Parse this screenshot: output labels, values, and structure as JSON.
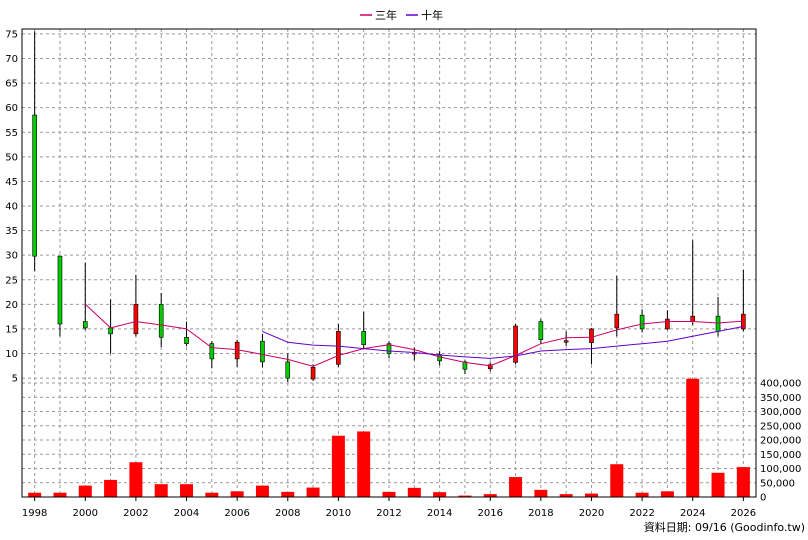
{
  "legend": [
    {
      "label": "三年",
      "color": "#cc0066"
    },
    {
      "label": "十年",
      "color": "#6600cc"
    }
  ],
  "footer": "資料日期: 09/16 (Goodinfo.tw)",
  "chart_data": [
    {
      "type": "candlestick",
      "x_ticks": [
        "1998",
        "2000",
        "2002",
        "2004",
        "2006",
        "2008",
        "2010",
        "2012",
        "2014",
        "2016",
        "2018",
        "2020",
        "2022",
        "2024",
        "2026"
      ],
      "y_ticks": [
        "75",
        "70",
        "65",
        "60",
        "55",
        "50",
        "45",
        "40",
        "35",
        "30",
        "25",
        "20",
        "15",
        "10",
        "5"
      ],
      "ylim": [
        4,
        76
      ],
      "xlim": [
        1997.5,
        2026.5
      ],
      "up_color": "#ff0000",
      "down_color": "#00cc00",
      "candles": [
        {
          "year": 1998,
          "open": 58.5,
          "close": 29.8,
          "high": 75.5,
          "low": 26.8
        },
        {
          "year": 1999,
          "open": 29.8,
          "close": 16.0,
          "high": 29.8,
          "low": 13.5
        },
        {
          "year": 2000,
          "open": 16.5,
          "close": 15.2,
          "high": 28.5,
          "low": 14.8
        },
        {
          "year": 2001,
          "open": 15.2,
          "close": 14.0,
          "high": 21.0,
          "low": 10.0
        },
        {
          "year": 2002,
          "open": 14.0,
          "close": 20.0,
          "high": 26.0,
          "low": 13.5
        },
        {
          "year": 2003,
          "open": 20.0,
          "close": 13.3,
          "high": 22.3,
          "low": 11.3
        },
        {
          "year": 2004,
          "open": 13.3,
          "close": 12.0,
          "high": 16.5,
          "low": 11.5
        },
        {
          "year": 2005,
          "open": 12.0,
          "close": 8.9,
          "high": 12.5,
          "low": 7.0
        },
        {
          "year": 2006,
          "open": 8.9,
          "close": 12.3,
          "high": 12.8,
          "low": 7.3
        },
        {
          "year": 2007,
          "open": 12.5,
          "close": 8.3,
          "high": 14.0,
          "low": 7.2
        },
        {
          "year": 2008,
          "open": 8.3,
          "close": 5.0,
          "high": 10.0,
          "low": 4.2
        },
        {
          "year": 2009,
          "open": 4.8,
          "close": 7.2,
          "high": 7.8,
          "low": 4.4
        },
        {
          "year": 2010,
          "open": 7.8,
          "close": 14.5,
          "high": 16.0,
          "low": 7.3
        },
        {
          "year": 2011,
          "open": 14.5,
          "close": 11.8,
          "high": 18.5,
          "low": 11.0
        },
        {
          "year": 2012,
          "open": 12.0,
          "close": 10.0,
          "high": 12.5,
          "low": 9.0
        },
        {
          "year": 2013,
          "open": 10.0,
          "close": 10.2,
          "high": 11.2,
          "low": 8.6
        },
        {
          "year": 2014,
          "open": 9.8,
          "close": 8.5,
          "high": 10.5,
          "low": 7.6
        },
        {
          "year": 2015,
          "open": 8.3,
          "close": 6.8,
          "high": 8.6,
          "low": 5.8
        },
        {
          "year": 2016,
          "open": 6.9,
          "close": 7.7,
          "high": 8.2,
          "low": 6.4
        },
        {
          "year": 2017,
          "open": 8.2,
          "close": 15.6,
          "high": 16.0,
          "low": 7.8
        },
        {
          "year": 2018,
          "open": 16.5,
          "close": 12.8,
          "high": 17.0,
          "low": 12.0
        },
        {
          "year": 2019,
          "open": 12.3,
          "close": 12.6,
          "high": 14.5,
          "low": 11.5
        },
        {
          "year": 2020,
          "open": 12.2,
          "close": 15.0,
          "high": 15.2,
          "low": 7.8
        },
        {
          "year": 2021,
          "open": 15.2,
          "close": 18.0,
          "high": 25.8,
          "low": 13.5
        },
        {
          "year": 2022,
          "open": 17.8,
          "close": 15.0,
          "high": 19.0,
          "low": 14.3
        },
        {
          "year": 2023,
          "open": 15.0,
          "close": 17.0,
          "high": 18.8,
          "low": 14.8
        },
        {
          "year": 2024,
          "open": 16.5,
          "close": 17.6,
          "high": 33.0,
          "low": 15.8
        },
        {
          "year": 2025,
          "open": 17.6,
          "close": 14.5,
          "high": 21.5,
          "low": 13.5
        },
        {
          "year": 2026,
          "open": 15.0,
          "close": 18.0,
          "high": 27.0,
          "low": 14.5
        }
      ],
      "series": [
        {
          "name": "三年",
          "color": "#cc0066",
          "x": [
            2000,
            2001,
            2002,
            2003,
            2004,
            2005,
            2006,
            2007,
            2008,
            2009,
            2010,
            2011,
            2012,
            2013,
            2014,
            2015,
            2016,
            2017,
            2018,
            2019,
            2020,
            2021,
            2022,
            2023,
            2024,
            2025,
            2026
          ],
          "y": [
            20.0,
            15.2,
            16.5,
            15.8,
            15.0,
            11.2,
            10.8,
            9.8,
            8.8,
            7.4,
            9.6,
            11.0,
            11.8,
            10.8,
            9.3,
            8.2,
            7.5,
            9.6,
            12.0,
            13.2,
            13.3,
            14.8,
            16.0,
            16.5,
            16.5,
            16.2,
            16.6
          ]
        },
        {
          "name": "十年",
          "color": "#6600cc",
          "x": [
            2007,
            2008,
            2009,
            2010,
            2011,
            2012,
            2013,
            2014,
            2015,
            2016,
            2017,
            2018,
            2019,
            2020,
            2021,
            2022,
            2023,
            2024,
            2025,
            2026
          ],
          "y": [
            14.5,
            12.3,
            11.7,
            11.5,
            11.0,
            10.5,
            10.2,
            9.7,
            9.3,
            9.0,
            9.5,
            10.5,
            10.8,
            11.0,
            11.5,
            12.0,
            12.5,
            13.5,
            14.5,
            15.5
          ]
        }
      ]
    },
    {
      "type": "bar",
      "y_ticks": [
        "400,000",
        "350,000",
        "300,000",
        "250,000",
        "200,000",
        "150,000",
        "100,000",
        "50,000",
        "0"
      ],
      "ylim": [
        0,
        400000
      ],
      "color": "#ff0000",
      "x": [
        1998,
        1999,
        2000,
        2001,
        2002,
        2003,
        2004,
        2005,
        2006,
        2007,
        2008,
        2009,
        2010,
        2011,
        2012,
        2013,
        2014,
        2015,
        2016,
        2017,
        2018,
        2019,
        2020,
        2021,
        2022,
        2023,
        2024,
        2025,
        2026
      ],
      "values": [
        15000,
        15000,
        40000,
        60000,
        122000,
        45000,
        45000,
        15000,
        20000,
        40000,
        18000,
        33000,
        215000,
        230000,
        18000,
        32000,
        17000,
        5000,
        10000,
        70000,
        25000,
        10000,
        12000,
        115000,
        15000,
        20000,
        415000,
        85000,
        105000
      ]
    }
  ]
}
